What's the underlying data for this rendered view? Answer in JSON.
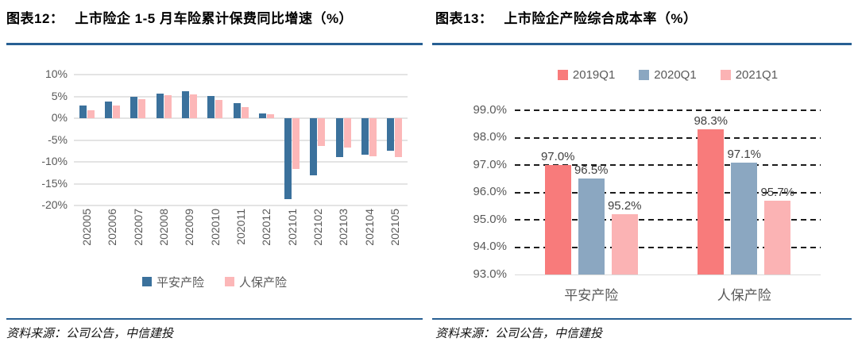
{
  "chart_data": [
    {
      "type": "bar",
      "fig_label": "图表12：",
      "title": "上市险企 1-5 月车险累计保费同比增速（%）",
      "source": "资料来源：公司公告，中信建投",
      "categories": [
        "202005",
        "202006",
        "202007",
        "202008",
        "202009",
        "202010",
        "202011",
        "202012",
        "202101",
        "202102",
        "202103",
        "202104",
        "202105"
      ],
      "series": [
        {
          "name": "平安产险",
          "color": "#3b719c",
          "values": [
            2.9,
            3.8,
            4.9,
            5.7,
            6.2,
            5.1,
            3.4,
            1.1,
            -18.5,
            -13.1,
            -8.9,
            -8.3,
            -7.5
          ]
        },
        {
          "name": "人保产险",
          "color": "#fcb7b8",
          "values": [
            1.9,
            3.0,
            4.4,
            5.2,
            5.5,
            4.2,
            2.5,
            1.0,
            -11.6,
            -6.3,
            -6.8,
            -8.7,
            -8.9
          ]
        }
      ],
      "xlabel": "",
      "ylabel": "",
      "ylim": [
        -20,
        10
      ],
      "ytick_step": 5,
      "yticks": [
        "10%",
        "5%",
        "0%",
        "-5%",
        "-10%",
        "-15%",
        "-20%"
      ],
      "ytick_decimals": 0,
      "grid": "solid",
      "legend_position": "bottom",
      "data_labels": false
    },
    {
      "type": "bar",
      "fig_label": "图表13：",
      "title": "上市险企产险综合成本率（%）",
      "source": "资料来源：公司公告，中信建投",
      "categories": [
        "平安产险",
        "人保产险"
      ],
      "series": [
        {
          "name": "2019Q1",
          "color": "#f87b7b",
          "values": [
            97.0,
            98.3
          ]
        },
        {
          "name": "2020Q1",
          "color": "#8ba7c1",
          "values": [
            96.5,
            97.1
          ]
        },
        {
          "name": "2021Q1",
          "color": "#fbb3b4",
          "values": [
            95.2,
            95.7
          ]
        }
      ],
      "xlabel": "",
      "ylabel": "",
      "ylim": [
        93.0,
        99.0
      ],
      "ytick_step": 1,
      "yticks": [
        "99.0%",
        "98.0%",
        "97.0%",
        "96.0%",
        "95.0%",
        "94.0%",
        "93.0%"
      ],
      "ytick_decimals": 1,
      "grid": "dashed",
      "legend_position": "top",
      "data_labels": true,
      "data_label_values": [
        "97.0%",
        "96.5%",
        "95.2%",
        "98.3%",
        "97.1%",
        "95.7%"
      ]
    }
  ],
  "styles": {
    "rule_color": "#275f93",
    "axis_text_color": "#595959",
    "data_label_color": "#404040",
    "gridline_color_solid": "#e4e4e4",
    "gridline_color_dashed": "#1c1c1c"
  }
}
